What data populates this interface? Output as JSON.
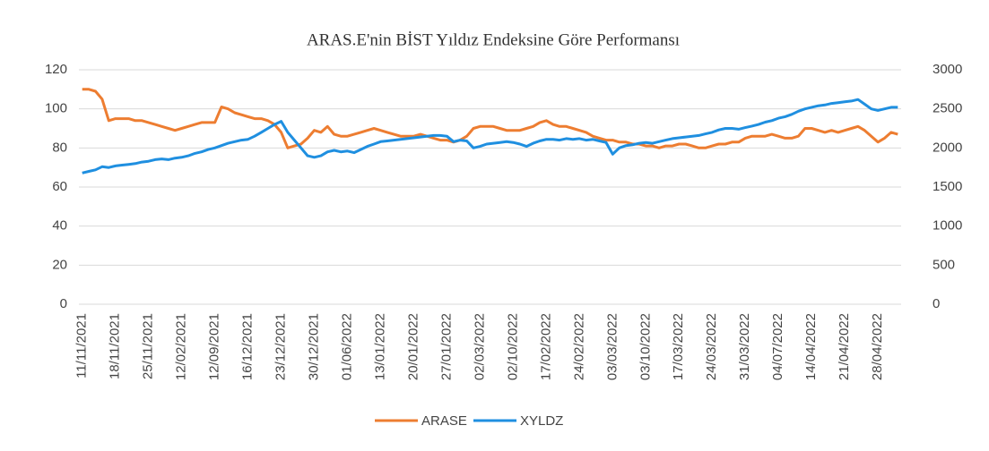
{
  "chart_data": {
    "type": "line",
    "title": "ARAS.E'nin BİST Yıldız Endeksine Göre Performansı",
    "categories": [
      "11/11/2021",
      null,
      null,
      null,
      null,
      "18/11/2021",
      null,
      null,
      null,
      null,
      "25/11/2021",
      null,
      null,
      null,
      null,
      "12/02/2021",
      null,
      null,
      null,
      null,
      "12/09/2021",
      null,
      null,
      null,
      null,
      "16/12/2021",
      null,
      null,
      null,
      null,
      "23/12/2021",
      null,
      null,
      null,
      null,
      "30/12/2021",
      null,
      null,
      null,
      null,
      "01/06/2022",
      null,
      null,
      null,
      null,
      "13/01/2022",
      null,
      null,
      null,
      null,
      "20/01/2022",
      null,
      null,
      null,
      null,
      "27/01/2022",
      null,
      null,
      null,
      null,
      "02/03/2022",
      null,
      null,
      null,
      null,
      "02/10/2022",
      null,
      null,
      null,
      null,
      "17/02/2022",
      null,
      null,
      null,
      null,
      "24/02/2022",
      null,
      null,
      null,
      null,
      "03/03/2022",
      null,
      null,
      null,
      null,
      "03/10/2022",
      null,
      null,
      null,
      null,
      "17/03/2022",
      null,
      null,
      null,
      null,
      "24/03/2022",
      null,
      null,
      null,
      null,
      "31/03/2022",
      null,
      null,
      null,
      null,
      "04/07/2022",
      null,
      null,
      null,
      null,
      "14/04/2022",
      null,
      null,
      null,
      null,
      "21/04/2022",
      null,
      null,
      null,
      null,
      "28/04/2022",
      null,
      null,
      null
    ],
    "series": [
      {
        "name": "ARASE",
        "color": "#ed7d31",
        "values": [
          110,
          110,
          109,
          105,
          94,
          95,
          95,
          95,
          94,
          94,
          93,
          92,
          91,
          90,
          89,
          90,
          91,
          92,
          93,
          93,
          93,
          101,
          100,
          98,
          97,
          96,
          95,
          95,
          94,
          92,
          88,
          80,
          81,
          82,
          85,
          89,
          88,
          91,
          87,
          86,
          86,
          87,
          88,
          89,
          90,
          89,
          88,
          87,
          86,
          86,
          86,
          87,
          86,
          85,
          84,
          84,
          83,
          84,
          86,
          90,
          91,
          91,
          91,
          90,
          89,
          89,
          89,
          90,
          91,
          93,
          94,
          92,
          91,
          91,
          90,
          89,
          88,
          86,
          85,
          84,
          84,
          83,
          83,
          82,
          82,
          81,
          81,
          80,
          81,
          81,
          82,
          82,
          81,
          80,
          80,
          81,
          82,
          82,
          83,
          83,
          85,
          86,
          86,
          86,
          87,
          86,
          85,
          85,
          86,
          90,
          90,
          89,
          88,
          89,
          88,
          89,
          90,
          91,
          89,
          86,
          83,
          85,
          88,
          87
        ]
      },
      {
        "name": "XYLDZ",
        "color": "#1f8fe0",
        "axis": "y2",
        "values": [
          1680,
          1700,
          1720,
          1760,
          1750,
          1770,
          1780,
          1790,
          1800,
          1820,
          1830,
          1850,
          1860,
          1850,
          1870,
          1880,
          1900,
          1930,
          1950,
          1980,
          2000,
          2030,
          2060,
          2080,
          2100,
          2110,
          2150,
          2200,
          2250,
          2300,
          2340,
          2200,
          2100,
          2000,
          1900,
          1880,
          1900,
          1950,
          1970,
          1950,
          1960,
          1940,
          1980,
          2020,
          2050,
          2080,
          2090,
          2100,
          2110,
          2120,
          2130,
          2140,
          2150,
          2160,
          2160,
          2150,
          2080,
          2100,
          2090,
          2000,
          2020,
          2050,
          2060,
          2070,
          2080,
          2070,
          2050,
          2020,
          2060,
          2090,
          2110,
          2110,
          2100,
          2120,
          2110,
          2120,
          2100,
          2110,
          2090,
          2070,
          1920,
          2000,
          2030,
          2040,
          2060,
          2070,
          2060,
          2080,
          2100,
          2120,
          2130,
          2140,
          2150,
          2160,
          2180,
          2200,
          2230,
          2250,
          2250,
          2240,
          2260,
          2280,
          2300,
          2330,
          2350,
          2380,
          2400,
          2430,
          2470,
          2500,
          2520,
          2540,
          2550,
          2570,
          2580,
          2590,
          2600,
          2620,
          2560,
          2500,
          2480,
          2500,
          2520,
          2520
        ]
      }
    ],
    "ylim": [
      0,
      120
    ],
    "yticks": [
      0,
      20,
      40,
      60,
      80,
      100,
      120
    ],
    "y2lim": [
      0,
      3000
    ],
    "y2ticks": [
      0,
      500,
      1000,
      1500,
      2000,
      2500,
      3000
    ],
    "grid": true,
    "legend": "bottom"
  }
}
